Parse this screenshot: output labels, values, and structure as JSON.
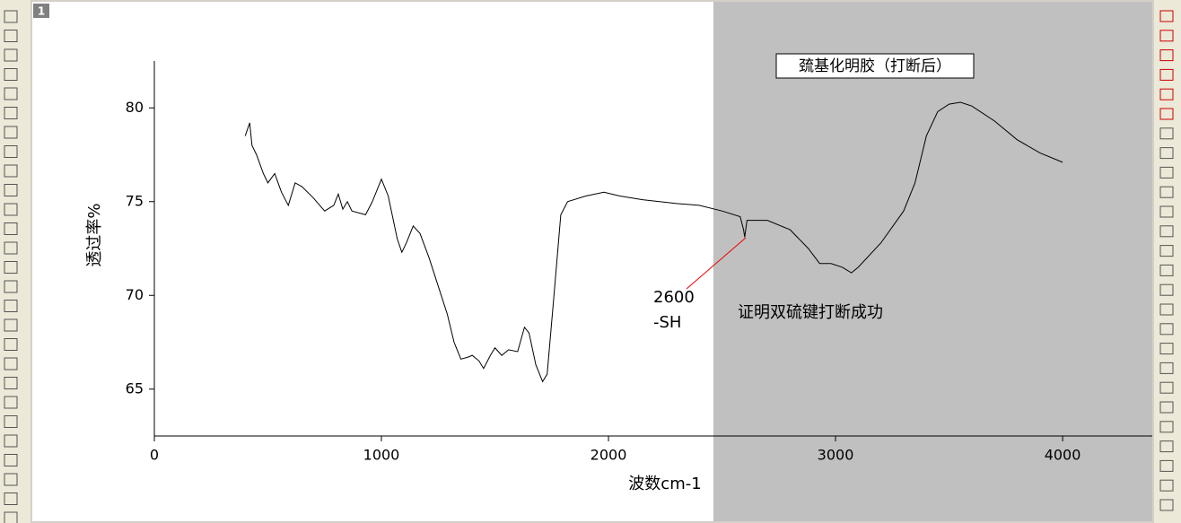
{
  "window_label": "1",
  "chart_data": {
    "type": "line",
    "title": "巯基化明胶（打断后）",
    "x_label": "波数cm-1",
    "y_label": "透过率%",
    "annotations": [
      "2600",
      "-SH",
      "证明双硫键打断成功"
    ],
    "xlim": [
      0,
      4395
    ],
    "ylim": [
      62.5,
      82.5
    ],
    "xticks": [
      0,
      1000,
      2000,
      3000,
      4000
    ],
    "yticks": [
      65,
      70,
      75,
      80
    ],
    "shaded_region": [
      2462,
      4395
    ],
    "shade_color": "#c0c0c0",
    "x": [
      400,
      420,
      430,
      450,
      480,
      500,
      530,
      560,
      590,
      620,
      650,
      700,
      750,
      790,
      810,
      830,
      850,
      870,
      930,
      960,
      1000,
      1030,
      1070,
      1090,
      1110,
      1140,
      1170,
      1210,
      1250,
      1290,
      1320,
      1350,
      1380,
      1400,
      1430,
      1450,
      1480,
      1500,
      1530,
      1560,
      1600,
      1630,
      1650,
      1680,
      1710,
      1730,
      1760,
      1790,
      1820,
      1900,
      1980,
      2050,
      2150,
      2300,
      2400,
      2500,
      2580,
      2595,
      2600,
      2610,
      2700,
      2800,
      2880,
      2930,
      2980,
      3030,
      3070,
      3100,
      3200,
      3300,
      3350,
      3400,
      3450,
      3500,
      3550,
      3600,
      3700,
      3800,
      3900,
      4000
    ],
    "series": [
      {
        "color": "#000000",
        "values": [
          78.5,
          79.2,
          78,
          77.5,
          76.5,
          76,
          76.5,
          75.5,
          74.8,
          76,
          75.8,
          75.2,
          74.5,
          74.8,
          75.4,
          74.6,
          75,
          74.5,
          74.3,
          75,
          76.2,
          75.3,
          73,
          72.3,
          72.8,
          73.7,
          73.3,
          72,
          70.5,
          69,
          67.5,
          66.6,
          66.7,
          66.8,
          66.5,
          66.1,
          66.8,
          67.2,
          66.8,
          67.1,
          67,
          68.3,
          68,
          66.3,
          65.4,
          65.8,
          70,
          74.3,
          75,
          75.3,
          75.5,
          75.3,
          75.1,
          74.9,
          74.8,
          74.5,
          74.2,
          73.5,
          73.1,
          74,
          74,
          73.5,
          72.5,
          71.7,
          71.7,
          71.5,
          71.2,
          71.5,
          72.8,
          74.5,
          76,
          78.5,
          79.8,
          80.2,
          80.3,
          80.1,
          79.3,
          78.3,
          77.6,
          77.1
        ]
      }
    ]
  }
}
